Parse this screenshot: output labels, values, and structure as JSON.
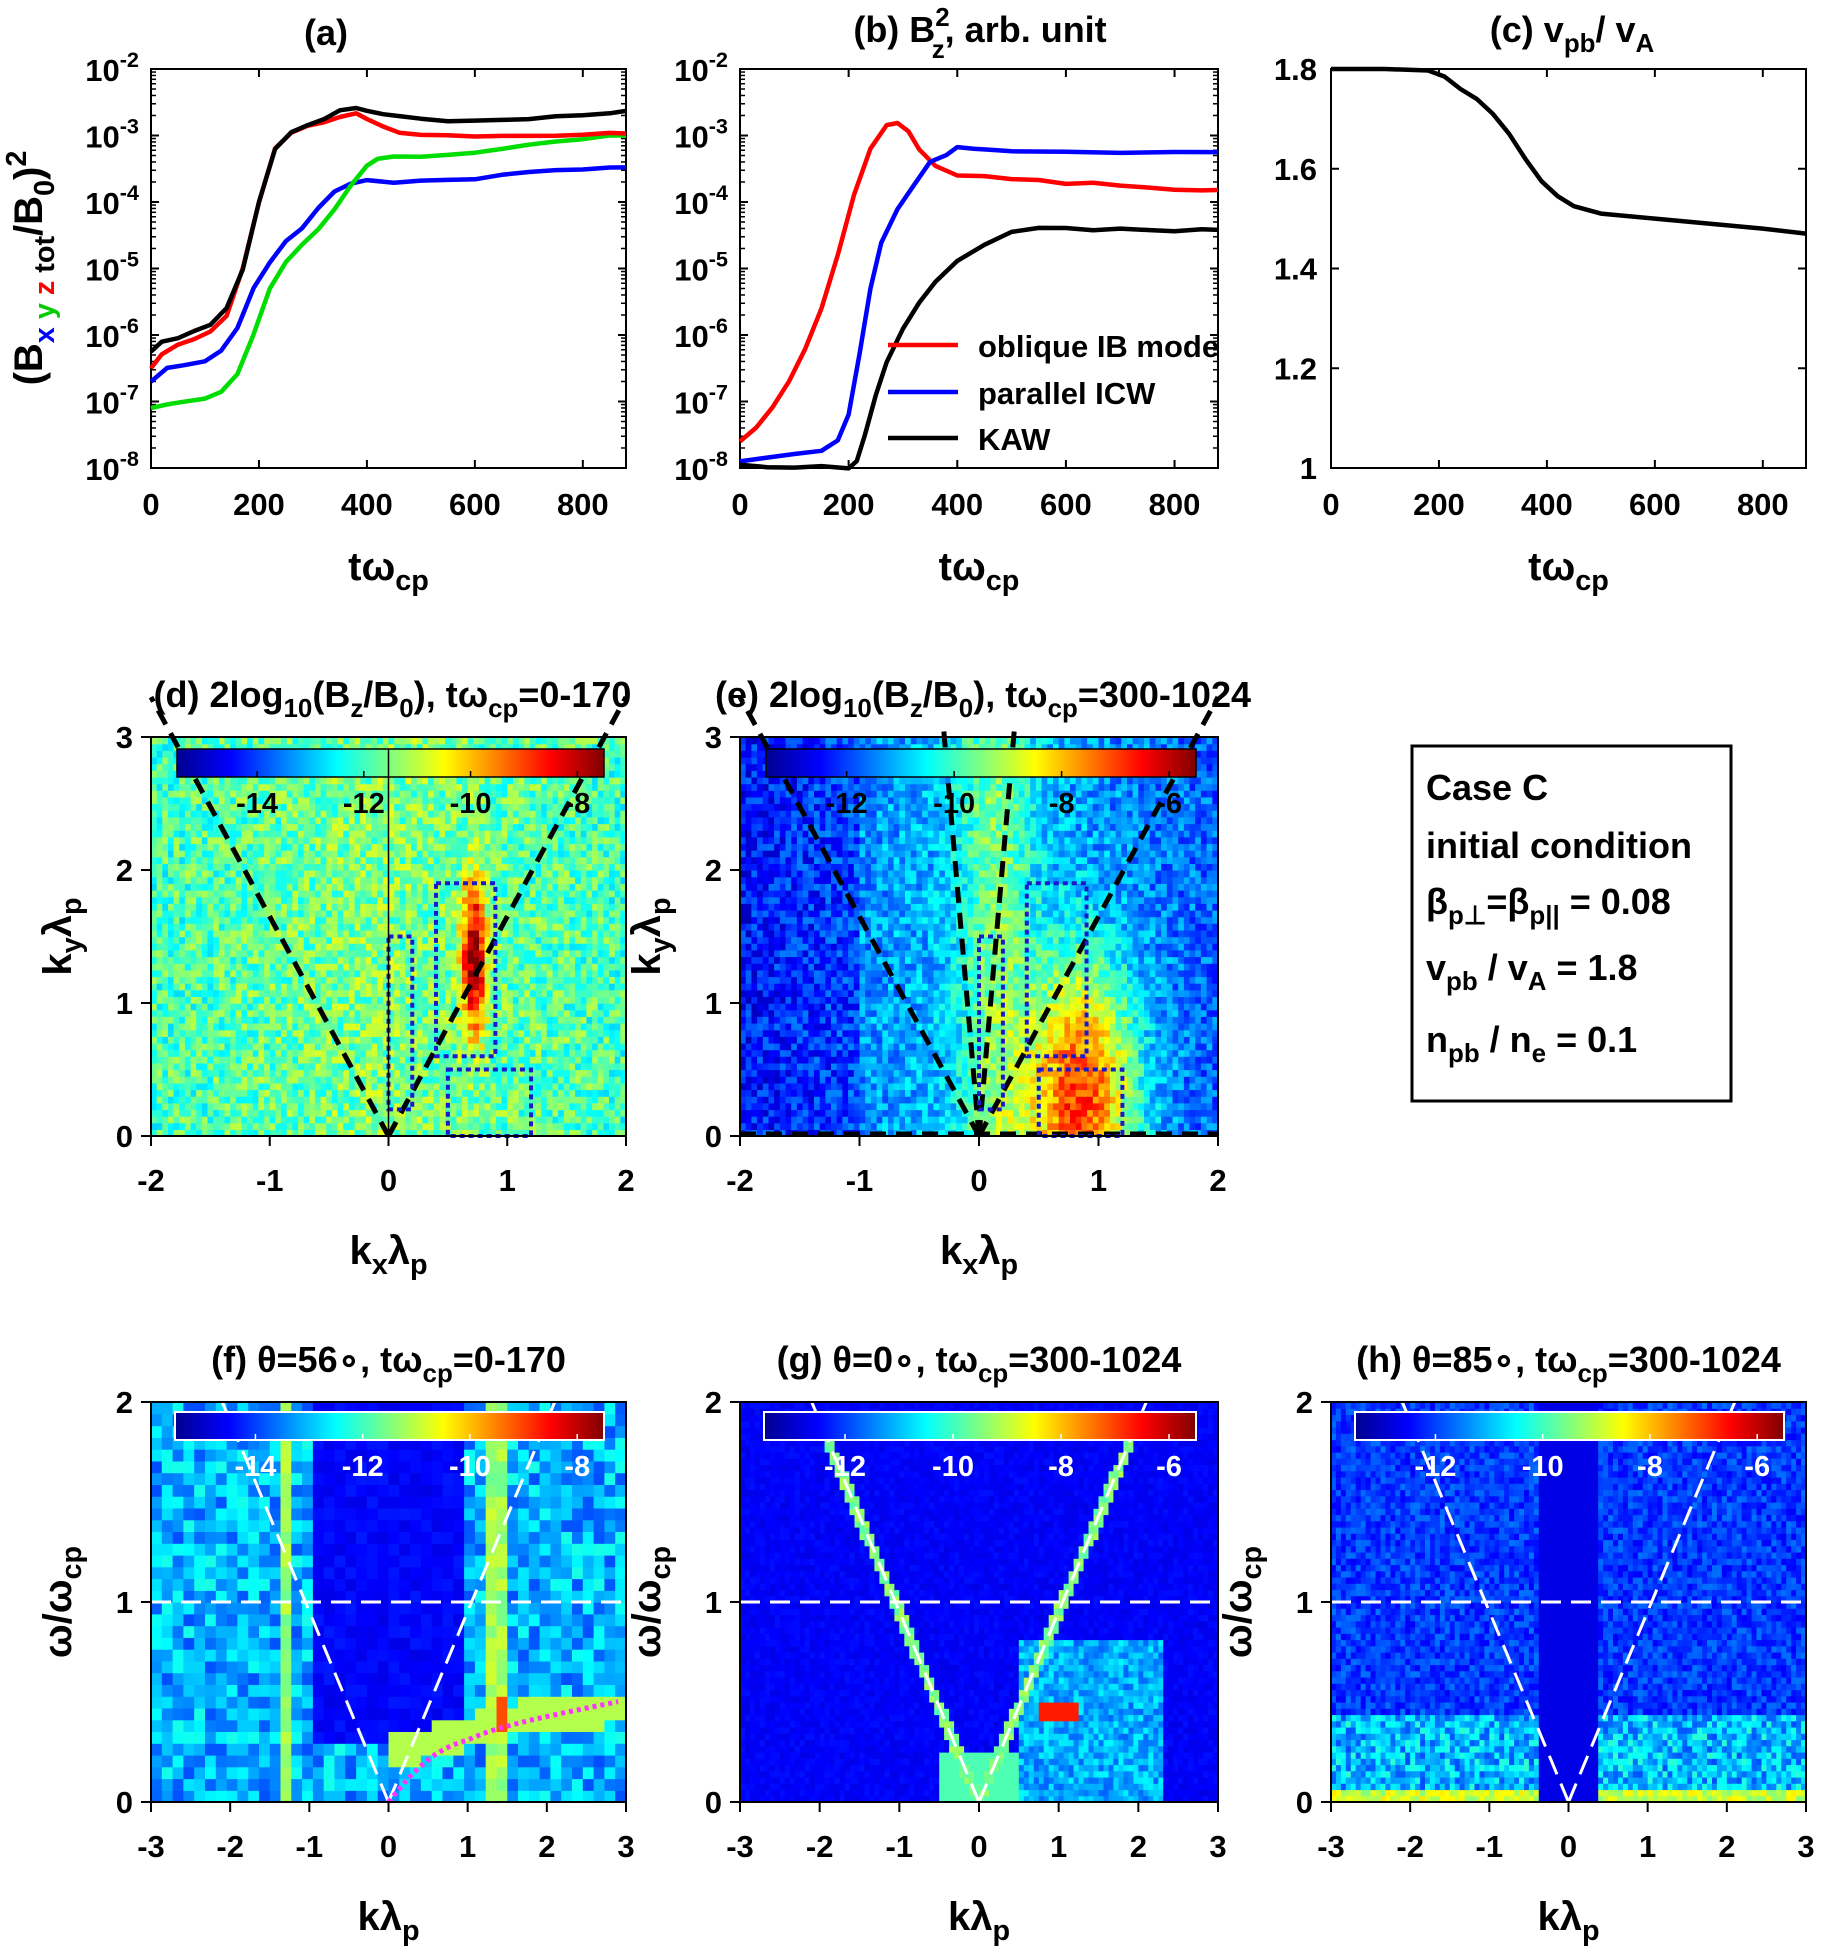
{
  "chart_data": [
    {
      "panel": "a",
      "type": "line",
      "title": "(a)",
      "xlabel": "tω_cp",
      "ylabel": "(B x y z tot /B0)^2",
      "ylabel_parts": [
        "(B",
        "x",
        "y",
        "z",
        "tot",
        "/B",
        "0",
        ")",
        "2"
      ],
      "yscale": "log",
      "xlim": [
        0,
        880
      ],
      "ylim": [
        1e-08,
        0.01
      ],
      "xticks": [
        0,
        200,
        400,
        600,
        800
      ],
      "yticks_exp": [
        -8,
        -7,
        -6,
        -5,
        -4,
        -3,
        -2
      ],
      "series": [
        {
          "name": "x",
          "color": "#0000ff",
          "x": [
            0,
            30,
            60,
            100,
            130,
            160,
            190,
            220,
            250,
            280,
            310,
            340,
            370,
            400,
            450,
            500,
            550,
            600,
            650,
            700,
            750,
            800,
            850,
            880
          ],
          "log10y": [
            -6.7,
            -6.5,
            -6.45,
            -6.4,
            -6.25,
            -5.9,
            -5.3,
            -4.9,
            -4.6,
            -4.4,
            -4.1,
            -3.85,
            -3.72,
            -3.68,
            -3.7,
            -3.68,
            -3.66,
            -3.65,
            -3.6,
            -3.56,
            -3.53,
            -3.5,
            -3.48,
            -3.48
          ]
        },
        {
          "name": "y",
          "color": "#00dd00",
          "x": [
            0,
            30,
            60,
            100,
            130,
            160,
            190,
            220,
            250,
            280,
            310,
            340,
            370,
            400,
            420,
            450,
            500,
            550,
            600,
            650,
            700,
            750,
            800,
            850,
            880
          ],
          "log10y": [
            -7.1,
            -7.05,
            -7.0,
            -6.95,
            -6.85,
            -6.6,
            -6.0,
            -5.3,
            -4.9,
            -4.65,
            -4.4,
            -4.1,
            -3.75,
            -3.45,
            -3.35,
            -3.33,
            -3.32,
            -3.3,
            -3.25,
            -3.2,
            -3.15,
            -3.1,
            -3.05,
            -3.0,
            -3.0
          ]
        },
        {
          "name": "z",
          "color": "#ff0000",
          "x": [
            0,
            20,
            50,
            80,
            110,
            140,
            170,
            200,
            230,
            260,
            290,
            320,
            350,
            380,
            400,
            430,
            460,
            500,
            550,
            600,
            650,
            700,
            750,
            800,
            850,
            880
          ],
          "log10y": [
            -6.5,
            -6.3,
            -6.15,
            -6.05,
            -5.95,
            -5.7,
            -5.0,
            -4.0,
            -3.2,
            -2.95,
            -2.85,
            -2.8,
            -2.72,
            -2.68,
            -2.75,
            -2.85,
            -2.95,
            -2.98,
            -3.0,
            -3.0,
            -3.0,
            -3.0,
            -3.0,
            -2.98,
            -2.97,
            -2.97
          ]
        },
        {
          "name": "tot",
          "color": "#000000",
          "x": [
            0,
            20,
            50,
            80,
            110,
            140,
            170,
            200,
            230,
            260,
            290,
            320,
            350,
            380,
            400,
            430,
            460,
            500,
            550,
            600,
            650,
            700,
            750,
            800,
            850,
            880
          ],
          "log10y": [
            -6.25,
            -6.1,
            -6.05,
            -5.95,
            -5.85,
            -5.6,
            -5.0,
            -4.0,
            -3.2,
            -2.95,
            -2.85,
            -2.75,
            -2.62,
            -2.6,
            -2.62,
            -2.68,
            -2.72,
            -2.75,
            -2.77,
            -2.78,
            -2.77,
            -2.75,
            -2.72,
            -2.7,
            -2.66,
            -2.63
          ]
        }
      ]
    },
    {
      "panel": "b",
      "type": "line",
      "title": "(b)  B_z^2, arb. unit",
      "title_parts": [
        "(b)  B",
        "2",
        "z",
        ", arb. unit"
      ],
      "xlabel": "tω_cp",
      "yscale": "log",
      "xlim": [
        0,
        880
      ],
      "ylim": [
        1e-08,
        0.01
      ],
      "xticks": [
        0,
        200,
        400,
        600,
        800
      ],
      "yticks_exp": [
        -8,
        -7,
        -6,
        -5,
        -4,
        -3,
        -2
      ],
      "legend": "center-right",
      "series": [
        {
          "name": "oblique IB mode",
          "color": "#ff0000",
          "x": [
            0,
            30,
            60,
            90,
            120,
            150,
            180,
            210,
            240,
            270,
            290,
            310,
            330,
            360,
            400,
            450,
            500,
            550,
            600,
            650,
            700,
            750,
            800,
            850,
            880
          ],
          "log10y": [
            -7.6,
            -7.4,
            -7.1,
            -6.7,
            -6.2,
            -5.6,
            -4.8,
            -3.9,
            -3.2,
            -2.85,
            -2.8,
            -2.95,
            -3.2,
            -3.45,
            -3.6,
            -3.62,
            -3.65,
            -3.68,
            -3.72,
            -3.72,
            -3.75,
            -3.78,
            -3.8,
            -3.82,
            -3.82
          ]
        },
        {
          "name": "parallel ICW",
          "color": "#0000ff",
          "x": [
            0,
            50,
            100,
            150,
            180,
            200,
            220,
            240,
            260,
            290,
            320,
            350,
            380,
            400,
            430,
            460,
            500,
            600,
            700,
            800,
            880
          ],
          "log10y": [
            -7.9,
            -7.85,
            -7.8,
            -7.75,
            -7.6,
            -7.2,
            -6.3,
            -5.3,
            -4.6,
            -4.1,
            -3.75,
            -3.4,
            -3.3,
            -3.18,
            -3.2,
            -3.22,
            -3.25,
            -3.25,
            -3.25,
            -3.25,
            -3.25
          ]
        },
        {
          "name": "KAW",
          "color": "#000000",
          "x": [
            0,
            50,
            100,
            150,
            200,
            215,
            230,
            250,
            270,
            300,
            330,
            360,
            400,
            450,
            500,
            550,
            600,
            650,
            700,
            750,
            800,
            850,
            880
          ],
          "log10y": [
            -7.95,
            -7.98,
            -8.0,
            -7.97,
            -8.0,
            -7.9,
            -7.5,
            -6.9,
            -6.4,
            -5.9,
            -5.5,
            -5.2,
            -4.9,
            -4.65,
            -4.45,
            -4.4,
            -4.4,
            -4.42,
            -4.4,
            -4.42,
            -4.43,
            -4.42,
            -4.42
          ]
        }
      ]
    },
    {
      "panel": "c",
      "type": "line",
      "title": "(c) v_pb/ v_A",
      "title_parts": [
        "(c) v",
        "pb",
        "/ v",
        "A"
      ],
      "xlabel": "tω_cp",
      "xlim": [
        0,
        880
      ],
      "ylim": [
        1,
        1.8
      ],
      "xticks": [
        0,
        200,
        400,
        600,
        800
      ],
      "yticks": [
        "1",
        "1.2",
        "1.4",
        "1.6",
        "1.8"
      ],
      "series": [
        {
          "name": "",
          "color": "#000000",
          "x": [
            0,
            100,
            180,
            210,
            240,
            270,
            300,
            330,
            360,
            390,
            420,
            450,
            500,
            600,
            700,
            800,
            880
          ],
          "y": [
            1.8,
            1.8,
            1.797,
            1.785,
            1.76,
            1.74,
            1.71,
            1.67,
            1.62,
            1.575,
            1.545,
            1.525,
            1.51,
            1.5,
            1.49,
            1.48,
            1.47
          ]
        }
      ]
    },
    {
      "panel": "d",
      "type": "heatmap",
      "title": "(d) 2log10(Bz/B0), tωcp=0-170",
      "title_parts": [
        "(d) 2log",
        "10",
        "(B",
        "z",
        "/B",
        "0",
        "), tω",
        "cp",
        "=0-170"
      ],
      "xlabel": "k_x λ_p",
      "ylabel": "k_y λ_p",
      "xlim": [
        -2,
        2
      ],
      "ylim": [
        0,
        3
      ],
      "xticks": [
        "-2",
        "-1",
        "0",
        "1",
        "2"
      ],
      "yticks": [
        "0",
        "1",
        "2",
        "3"
      ],
      "colorbar_ticks": [
        "-14",
        "-12",
        "-10",
        "-8"
      ],
      "clim": [
        -15.5,
        -7.5
      ]
    },
    {
      "panel": "e",
      "type": "heatmap",
      "title": "(e) 2log10(Bz/B0), tωcp=300-1024",
      "title_parts": [
        "(e) 2log",
        "10",
        "(B",
        "z",
        "/B",
        "0",
        "), tω",
        "cp",
        "=300-1024"
      ],
      "xlabel": "k_x λ_p",
      "ylabel": "k_y λ_p",
      "xlim": [
        -2,
        2
      ],
      "ylim": [
        0,
        3
      ],
      "xticks": [
        "-2",
        "-1",
        "0",
        "1",
        "2"
      ],
      "yticks": [
        "0",
        "1",
        "2",
        "3"
      ],
      "colorbar_ticks": [
        "-12",
        "-10",
        "-8",
        "-6"
      ],
      "clim": [
        -13.5,
        -5.5
      ]
    },
    {
      "panel": "f",
      "type": "heatmap",
      "title": "(f) θ=56∘, tωcp=0-170",
      "title_parts": [
        "(f) θ=56∘, tω",
        "cp",
        "=0-170"
      ],
      "xlabel": "k λ_p",
      "ylabel": "ω/ω_cp",
      "xlim": [
        -3,
        3
      ],
      "ylim": [
        0,
        2
      ],
      "xticks": [
        "-3",
        "-2",
        "-1",
        "0",
        "1",
        "2",
        "3"
      ],
      "yticks": [
        "0",
        "1",
        "2"
      ],
      "colorbar_ticks": [
        "-14",
        "-12",
        "-10",
        "-8"
      ],
      "clim": [
        -15.5,
        -7.5
      ]
    },
    {
      "panel": "g",
      "type": "heatmap",
      "title": "(g) θ=0∘, tωcp=300-1024",
      "title_parts": [
        "(g) θ=0∘, tω",
        "cp",
        "=300-1024"
      ],
      "xlabel": "k λ_p",
      "ylabel": "ω/ω_cp",
      "xlim": [
        -3,
        3
      ],
      "ylim": [
        0,
        2
      ],
      "xticks": [
        "-3",
        "-2",
        "-1",
        "0",
        "1",
        "2",
        "3"
      ],
      "yticks": [
        "0",
        "1",
        "2"
      ],
      "colorbar_ticks": [
        "-12",
        "-10",
        "-8",
        "-6"
      ],
      "clim": [
        -13.5,
        -5.5
      ]
    },
    {
      "panel": "h",
      "type": "heatmap",
      "title": "(h) θ=85∘, tωcp=300-1024",
      "title_parts": [
        "(h) θ=85∘, tω",
        "cp",
        "=300-1024"
      ],
      "xlabel": "k λ_p",
      "ylabel": "ω/ω_cp",
      "xlim": [
        -3,
        3
      ],
      "ylim": [
        0,
        2
      ],
      "xticks": [
        "-3",
        "-2",
        "-1",
        "0",
        "1",
        "2",
        "3"
      ],
      "yticks": [
        "0",
        "1",
        "2"
      ],
      "colorbar_ticks": [
        "-12",
        "-10",
        "-8",
        "-6"
      ],
      "clim": [
        -13.5,
        -5.5
      ]
    }
  ],
  "infobox": {
    "line1": "Case C",
    "line2": "initial condition",
    "beta": [
      "β",
      "p⊥",
      "=β",
      "p||",
      " = 0.08"
    ],
    "vpb": [
      "v",
      "pb",
      " / v",
      "A",
      " = 1.8"
    ],
    "npb": [
      "n",
      "pb",
      " / n",
      "e",
      " = 0.1"
    ]
  },
  "labels": {
    "t": "tω",
    "cp": "cp",
    "kx": [
      "k",
      "x",
      "λ",
      "p"
    ],
    "ky": [
      "k",
      "y",
      "λ",
      "p"
    ],
    "k": [
      "kλ",
      "p"
    ],
    "omega": [
      "ω/ω",
      "cp"
    ]
  }
}
